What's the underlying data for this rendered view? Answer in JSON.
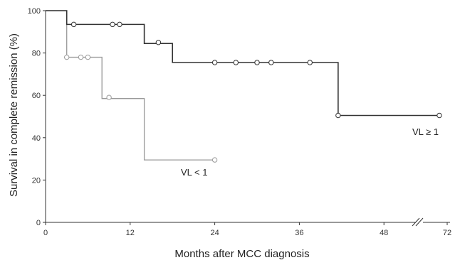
{
  "chart_data": {
    "type": "line",
    "xlabel": "Months after MCC diagnosis",
    "ylabel": "Survival in complete remission (%)",
    "xlim": [
      0,
      72
    ],
    "ylim": [
      0,
      100
    ],
    "x_ticks": [
      0,
      12,
      24,
      36,
      48,
      72
    ],
    "x_tick_labels": [
      "0",
      "12",
      "24",
      "36",
      "48",
      "72"
    ],
    "y_ticks": [
      0,
      20,
      40,
      60,
      80,
      100
    ],
    "y_tick_labels": [
      "0",
      "20",
      "40",
      "60",
      "80",
      "100"
    ],
    "axis_break": "between 48 and 72",
    "grid": false,
    "series": [
      {
        "name": "VL ≥ 1",
        "color": "#333333",
        "steps": [
          [
            0,
            100
          ],
          [
            3,
            93.5
          ],
          [
            14,
            84.5
          ],
          [
            18,
            75.5
          ],
          [
            41.5,
            50.5
          ],
          [
            70,
            50.5
          ]
        ],
        "censored": [
          [
            4,
            93.5
          ],
          [
            9.5,
            93.5
          ],
          [
            10.5,
            93.5
          ],
          [
            16,
            85
          ],
          [
            24,
            75.5
          ],
          [
            27,
            75.5
          ],
          [
            30,
            75.5
          ],
          [
            32,
            75.5
          ],
          [
            37.5,
            75.5
          ],
          [
            41.5,
            50.5
          ],
          [
            70,
            50.5
          ]
        ]
      },
      {
        "name": "VL < 1",
        "color": "#999999",
        "steps": [
          [
            0,
            100
          ],
          [
            3,
            78
          ],
          [
            8,
            58.5
          ],
          [
            14,
            29.5
          ],
          [
            24,
            29.5
          ]
        ],
        "censored": [
          [
            3,
            78
          ],
          [
            5,
            78
          ],
          [
            6,
            78
          ],
          [
            9,
            59
          ],
          [
            24,
            29.5
          ]
        ]
      }
    ]
  }
}
